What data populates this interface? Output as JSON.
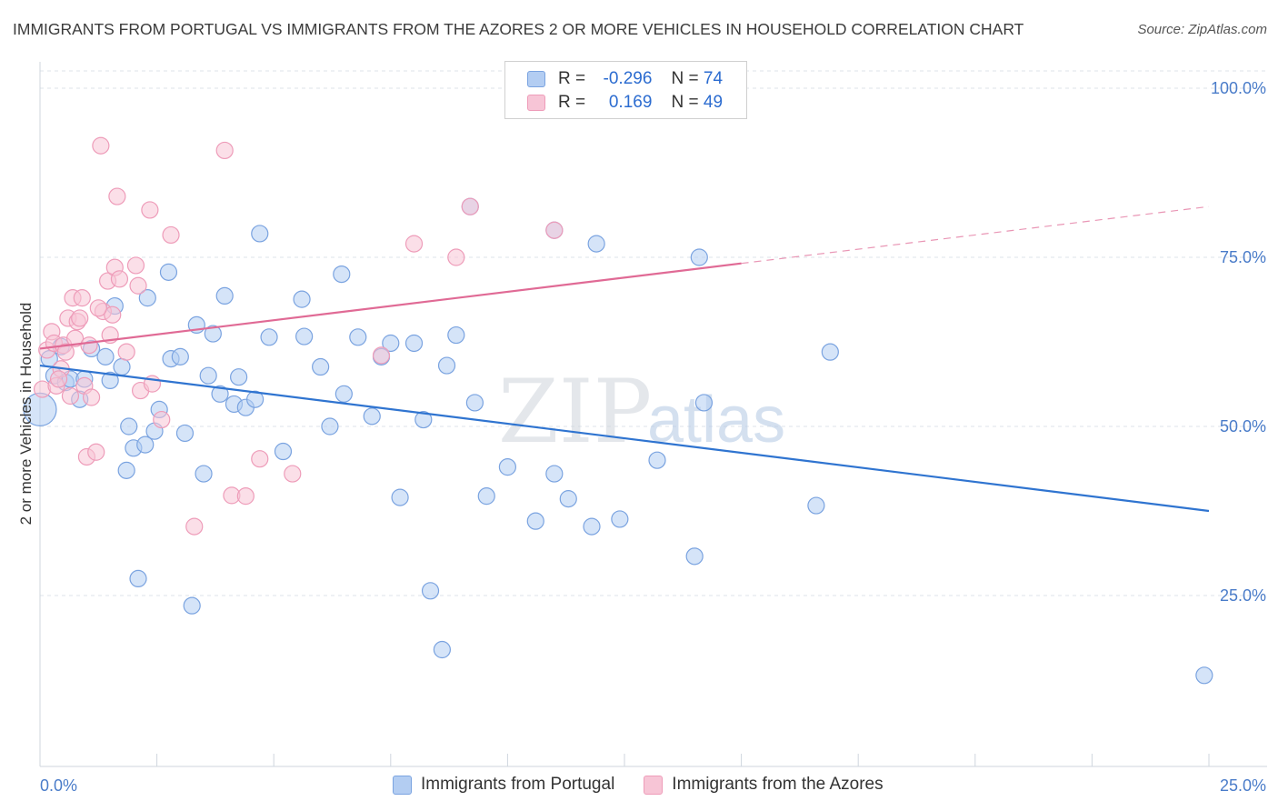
{
  "title": "IMMIGRANTS FROM PORTUGAL VS IMMIGRANTS FROM THE AZORES 2 OR MORE VEHICLES IN HOUSEHOLD CORRELATION CHART",
  "source": "Source: ZipAtlas.com",
  "watermark": {
    "zip": "ZIP",
    "atlas": "atlas"
  },
  "legend_top": [
    {
      "r_label": "R =",
      "r_value": "-0.296",
      "n_label": "N =",
      "n_value": "74"
    },
    {
      "r_label": "R =",
      "r_value": "0.169",
      "n_label": "N =",
      "n_value": "49"
    }
  ],
  "legend_bottom": [
    "Immigrants from Portugal",
    "Immigrants from the Azores"
  ],
  "colors": {
    "portugal_fill": "#b3cdf2",
    "portugal_stroke": "#7aa3e0",
    "portugal_line": "#2f74d0",
    "azores_fill": "#f7c5d6",
    "azores_stroke": "#ee9cb9",
    "azores_line": "#e06a95",
    "grid": "#dde3ea",
    "axis_text": "#4a7cc9"
  },
  "chart_data": {
    "type": "scatter",
    "title": "IMMIGRANTS FROM PORTUGAL VS IMMIGRANTS FROM THE AZORES 2 OR MORE VEHICLES IN HOUSEHOLD CORRELATION CHART",
    "xlabel": "",
    "ylabel": "2 or more Vehicles in Household",
    "xlim": [
      0,
      25
    ],
    "ylim": [
      0,
      102
    ],
    "x_tick_labels": [
      "0.0%",
      "25.0%"
    ],
    "y_ticks": [
      25,
      50,
      75,
      100
    ],
    "y_tick_labels": [
      "25.0%",
      "50.0%",
      "75.0%",
      "100.0%"
    ],
    "grid": true,
    "legend_placement": "top-center",
    "series": [
      {
        "name": "Immigrants from Portugal",
        "r": -0.296,
        "n": 74,
        "trend": {
          "x": [
            0,
            25
          ],
          "y": [
            59.0,
            37.5
          ],
          "dashed_from": null
        },
        "points": [
          [
            0.0,
            52.5
          ],
          [
            0.2,
            60.0
          ],
          [
            0.3,
            57.5
          ],
          [
            0.45,
            61.8
          ],
          [
            0.55,
            56.5
          ],
          [
            0.65,
            57.0
          ],
          [
            0.85,
            54.0
          ],
          [
            0.95,
            57.0
          ],
          [
            1.1,
            61.5
          ],
          [
            1.4,
            60.3
          ],
          [
            1.5,
            56.8
          ],
          [
            1.6,
            67.8
          ],
          [
            1.75,
            58.8
          ],
          [
            1.85,
            43.5
          ],
          [
            1.9,
            50.0
          ],
          [
            2.0,
            46.8
          ],
          [
            2.1,
            27.5
          ],
          [
            2.25,
            47.3
          ],
          [
            2.3,
            69.0
          ],
          [
            2.45,
            49.3
          ],
          [
            2.55,
            52.5
          ],
          [
            2.75,
            72.8
          ],
          [
            2.8,
            60.0
          ],
          [
            3.0,
            60.3
          ],
          [
            3.1,
            49.0
          ],
          [
            3.25,
            23.5
          ],
          [
            3.35,
            65.0
          ],
          [
            3.5,
            43.0
          ],
          [
            3.6,
            57.5
          ],
          [
            3.7,
            63.7
          ],
          [
            3.85,
            54.8
          ],
          [
            3.95,
            69.3
          ],
          [
            4.15,
            53.3
          ],
          [
            4.25,
            57.3
          ],
          [
            4.4,
            52.8
          ],
          [
            4.6,
            54.0
          ],
          [
            4.7,
            78.5
          ],
          [
            4.9,
            63.2
          ],
          [
            5.2,
            46.3
          ],
          [
            5.6,
            68.8
          ],
          [
            5.65,
            63.3
          ],
          [
            6.0,
            58.8
          ],
          [
            6.2,
            50.0
          ],
          [
            6.45,
            72.5
          ],
          [
            6.5,
            54.8
          ],
          [
            6.8,
            63.2
          ],
          [
            7.1,
            51.5
          ],
          [
            7.3,
            60.3
          ],
          [
            7.5,
            62.3
          ],
          [
            7.7,
            39.5
          ],
          [
            8.0,
            62.3
          ],
          [
            8.2,
            51.0
          ],
          [
            8.35,
            25.7
          ],
          [
            8.6,
            17.0
          ],
          [
            8.7,
            59.0
          ],
          [
            8.9,
            63.5
          ],
          [
            9.2,
            82.5
          ],
          [
            9.3,
            53.5
          ],
          [
            9.55,
            39.7
          ],
          [
            10.0,
            44.0
          ],
          [
            10.6,
            36.0
          ],
          [
            11.0,
            43.0
          ],
          [
            11.0,
            79.0
          ],
          [
            11.3,
            39.3
          ],
          [
            11.8,
            35.2
          ],
          [
            11.9,
            77.0
          ],
          [
            12.4,
            36.3
          ],
          [
            13.2,
            45.0
          ],
          [
            14.0,
            30.8
          ],
          [
            14.1,
            75.0
          ],
          [
            14.2,
            53.5
          ],
          [
            16.6,
            38.3
          ],
          [
            16.9,
            61.0
          ],
          [
            24.9,
            13.2
          ]
        ]
      },
      {
        "name": "Immigrants from the Azores",
        "r": 0.169,
        "n": 49,
        "trend": {
          "x": [
            0,
            25
          ],
          "y": [
            61.5,
            82.5
          ],
          "dashed_from": 15.0
        },
        "points": [
          [
            0.05,
            55.5
          ],
          [
            0.15,
            61.3
          ],
          [
            0.25,
            64.0
          ],
          [
            0.3,
            62.3
          ],
          [
            0.35,
            56.0
          ],
          [
            0.45,
            58.5
          ],
          [
            0.5,
            62.0
          ],
          [
            0.55,
            61.0
          ],
          [
            0.6,
            66.0
          ],
          [
            0.65,
            54.5
          ],
          [
            0.7,
            69.0
          ],
          [
            0.75,
            63.0
          ],
          [
            0.8,
            65.5
          ],
          [
            0.85,
            66.0
          ],
          [
            0.9,
            69.0
          ],
          [
            0.95,
            56.0
          ],
          [
            1.0,
            45.5
          ],
          [
            1.05,
            62.0
          ],
          [
            1.1,
            54.3
          ],
          [
            1.2,
            46.2
          ],
          [
            1.3,
            91.5
          ],
          [
            1.35,
            67.0
          ],
          [
            1.45,
            71.5
          ],
          [
            1.5,
            63.5
          ],
          [
            1.55,
            66.5
          ],
          [
            1.6,
            73.5
          ],
          [
            1.65,
            84.0
          ],
          [
            1.7,
            71.8
          ],
          [
            1.85,
            61.0
          ],
          [
            2.05,
            73.8
          ],
          [
            2.1,
            70.8
          ],
          [
            2.15,
            55.3
          ],
          [
            2.35,
            82.0
          ],
          [
            2.4,
            56.3
          ],
          [
            2.6,
            51.0
          ],
          [
            2.8,
            78.3
          ],
          [
            3.3,
            35.2
          ],
          [
            3.95,
            90.8
          ],
          [
            4.1,
            39.8
          ],
          [
            4.4,
            39.7
          ],
          [
            4.7,
            45.2
          ],
          [
            5.4,
            43.0
          ],
          [
            7.3,
            60.5
          ],
          [
            8.0,
            77.0
          ],
          [
            8.9,
            75.0
          ],
          [
            9.2,
            82.5
          ],
          [
            11.0,
            79.0
          ],
          [
            0.4,
            57.0
          ],
          [
            1.25,
            67.5
          ]
        ]
      }
    ]
  }
}
